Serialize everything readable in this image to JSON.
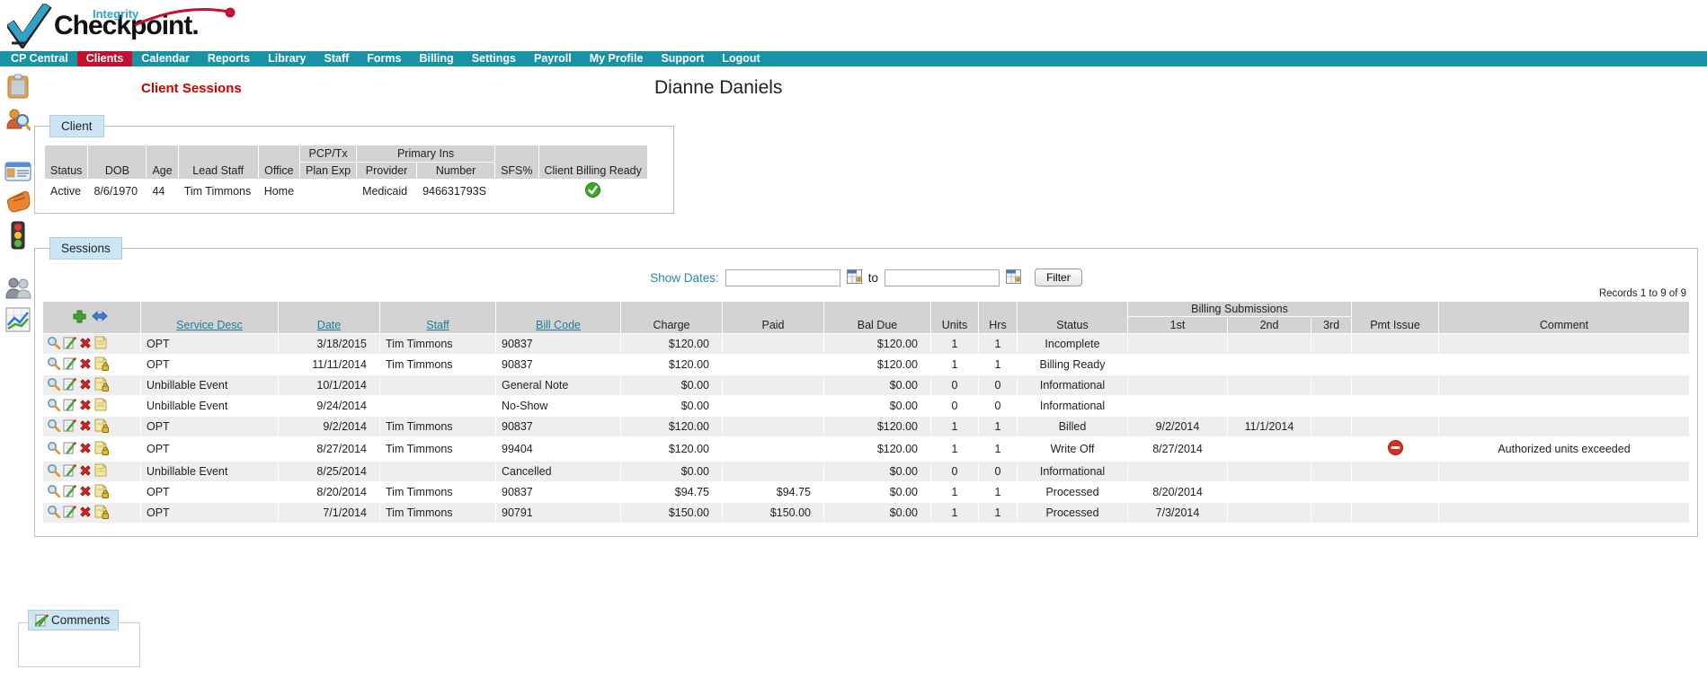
{
  "brand": {
    "top": "Integrity",
    "main": "Checkpoint."
  },
  "nav": {
    "items": [
      {
        "label": "CP Central",
        "active": false
      },
      {
        "label": "Clients",
        "active": true
      },
      {
        "label": "Calendar",
        "active": false
      },
      {
        "label": "Reports",
        "active": false
      },
      {
        "label": "Library",
        "active": false
      },
      {
        "label": "Staff",
        "active": false
      },
      {
        "label": "Forms",
        "active": false
      },
      {
        "label": "Billing",
        "active": false
      },
      {
        "label": "Settings",
        "active": false
      },
      {
        "label": "Payroll",
        "active": false
      },
      {
        "label": "My Profile",
        "active": false
      },
      {
        "label": "Support",
        "active": false
      },
      {
        "label": "Logout",
        "active": false
      }
    ]
  },
  "sidebar": {
    "icons": [
      "clipboard-icon",
      "client-search-icon",
      "id-card-icon",
      "hand-icon",
      "traffic-light-icon",
      "people-icon",
      "chart-icon"
    ]
  },
  "page": {
    "section_title": "Client Sessions",
    "client_name": "Dianne Daniels"
  },
  "client_panel": {
    "tab_label": "Client",
    "cols": {
      "status": "Status",
      "dob": "DOB",
      "age": "Age",
      "lead_staff": "Lead Staff",
      "office": "Office",
      "pcp_tx_line1": "PCP/Tx",
      "pcp_tx_line2": "Plan Exp",
      "primary_ins": "Primary Ins",
      "provider": "Provider",
      "number": "Number",
      "sfs": "SFS%",
      "billing_ready": "Client Billing Ready"
    },
    "row": {
      "status": "Active",
      "dob": "8/6/1970",
      "age": "44",
      "lead_staff": "Tim Timmons",
      "office": "Home",
      "pcp_tx_plan_exp": "",
      "provider": "Medicaid",
      "number": "946631793S",
      "sfs": "",
      "billing_ready_icon": "green-check-icon"
    }
  },
  "sessions_panel": {
    "tab_label": "Sessions",
    "filter": {
      "show_dates_label": "Show Dates:",
      "date_from": "",
      "to_label": "to",
      "date_to": "",
      "filter_button": "Filter"
    },
    "records_text": "Records 1 to 9 of 9",
    "cols": {
      "service_desc": "Service Desc",
      "date": "Date",
      "staff": "Staff",
      "bill_code": "Bill Code",
      "charge": "Charge",
      "paid": "Paid",
      "bal_due": "Bal Due",
      "units": "Units",
      "hrs": "Hrs",
      "status": "Status",
      "billing_submissions": "Billing Submissions",
      "sub_1st": "1st",
      "sub_2nd": "2nd",
      "sub_3rd": "3rd",
      "pmt_issue": "Pmt Issue",
      "comment": "Comment"
    },
    "header_icons": [
      "add-session-icon",
      "reorder-icon"
    ],
    "row_action_icons": [
      "view-session-icon",
      "edit-session-icon",
      "delete-session-icon",
      "session-note-icon"
    ],
    "rows": [
      {
        "service_desc": "OPT",
        "date": "3/18/2015",
        "staff": "Tim Timmons",
        "bill_code": "90837",
        "charge": "$120.00",
        "paid": "",
        "bal_due": "$120.00",
        "units": "1",
        "hrs": "1",
        "status": "Incomplete",
        "sub_1st": "",
        "sub_2nd": "",
        "sub_3rd": "",
        "pmt_issue": false,
        "comment": "",
        "locked": false
      },
      {
        "service_desc": "OPT",
        "date": "11/11/2014",
        "staff": "Tim Timmons",
        "bill_code": "90837",
        "charge": "$120.00",
        "paid": "",
        "bal_due": "$120.00",
        "units": "1",
        "hrs": "1",
        "status": "Billing Ready",
        "sub_1st": "",
        "sub_2nd": "",
        "sub_3rd": "",
        "pmt_issue": false,
        "comment": "",
        "locked": true
      },
      {
        "service_desc": "Unbillable Event",
        "date": "10/1/2014",
        "staff": "",
        "bill_code": "General Note",
        "charge": "$0.00",
        "paid": "",
        "bal_due": "$0.00",
        "units": "0",
        "hrs": "0",
        "status": "Informational",
        "sub_1st": "",
        "sub_2nd": "",
        "sub_3rd": "",
        "pmt_issue": false,
        "comment": "",
        "locked": true
      },
      {
        "service_desc": "Unbillable Event",
        "date": "9/24/2014",
        "staff": "",
        "bill_code": "No-Show",
        "charge": "$0.00",
        "paid": "",
        "bal_due": "$0.00",
        "units": "0",
        "hrs": "0",
        "status": "Informational",
        "sub_1st": "",
        "sub_2nd": "",
        "sub_3rd": "",
        "pmt_issue": false,
        "comment": "",
        "locked": false
      },
      {
        "service_desc": "OPT",
        "date": "9/2/2014",
        "staff": "Tim Timmons",
        "bill_code": "90837",
        "charge": "$120.00",
        "paid": "",
        "bal_due": "$120.00",
        "units": "1",
        "hrs": "1",
        "status": "Billed",
        "sub_1st": "9/2/2014",
        "sub_2nd": "11/1/2014",
        "sub_3rd": "",
        "pmt_issue": false,
        "comment": "",
        "locked": true
      },
      {
        "service_desc": "OPT",
        "date": "8/27/2014",
        "staff": "Tim Timmons",
        "bill_code": "99404",
        "charge": "$120.00",
        "paid": "",
        "bal_due": "$120.00",
        "units": "1",
        "hrs": "1",
        "status": "Write Off",
        "sub_1st": "8/27/2014",
        "sub_2nd": "",
        "sub_3rd": "",
        "pmt_issue": true,
        "comment": "Authorized units exceeded",
        "locked": true
      },
      {
        "service_desc": "Unbillable Event",
        "date": "8/25/2014",
        "staff": "",
        "bill_code": "Cancelled",
        "charge": "$0.00",
        "paid": "",
        "bal_due": "$0.00",
        "units": "0",
        "hrs": "0",
        "status": "Informational",
        "sub_1st": "",
        "sub_2nd": "",
        "sub_3rd": "",
        "pmt_issue": false,
        "comment": "",
        "locked": false
      },
      {
        "service_desc": "OPT",
        "date": "8/20/2014",
        "staff": "Tim Timmons",
        "bill_code": "90837",
        "charge": "$94.75",
        "paid": "$94.75",
        "bal_due": "$0.00",
        "units": "1",
        "hrs": "1",
        "status": "Processed",
        "sub_1st": "8/20/2014",
        "sub_2nd": "",
        "sub_3rd": "",
        "pmt_issue": false,
        "comment": "",
        "locked": true
      },
      {
        "service_desc": "OPT",
        "date": "7/1/2014",
        "staff": "Tim Timmons",
        "bill_code": "90791",
        "charge": "$150.00",
        "paid": "$150.00",
        "bal_due": "$0.00",
        "units": "1",
        "hrs": "1",
        "status": "Processed",
        "sub_1st": "7/3/2014",
        "sub_2nd": "",
        "sub_3rd": "",
        "pmt_issue": false,
        "comment": "",
        "locked": true
      }
    ]
  },
  "comments_panel": {
    "tab_label": "Comments",
    "tab_icon": "edit-icon"
  },
  "colors": {
    "nav_bg": "#1792a7",
    "nav_active_bg": "#c8102e",
    "heading_red": "#cc0000",
    "link_teal": "#1f7c9c",
    "tab_bg": "#cbe7f5",
    "table_header_gray": "#d3d3d3",
    "row_alt_gray": "#eeeeee",
    "green_check": "#3ba826",
    "pmt_issue_red": "#d93025",
    "brand_blue": "#2fa3c7",
    "brand_swoosh_red": "#c8102e"
  }
}
